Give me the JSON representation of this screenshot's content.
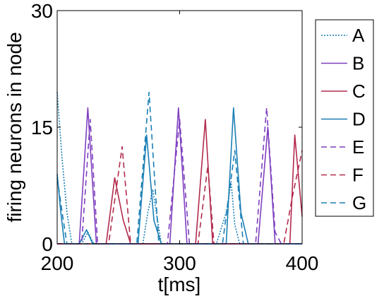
{
  "chart_data": {
    "type": "line",
    "title": "",
    "xlabel": "t[ms]",
    "ylabel": "firing neurons in node",
    "xlim": [
      200,
      400
    ],
    "ylim": [
      0,
      30
    ],
    "xticks": [
      200,
      300,
      400
    ],
    "yticks": [
      0,
      15,
      30
    ],
    "grid": false,
    "legend_position": "outside-right",
    "series": [
      {
        "name": "A",
        "color": "#1a7fb5",
        "dash": "dotted",
        "points": [
          [
            200,
            19.5
          ],
          [
            204,
            11
          ],
          [
            208,
            4
          ],
          [
            212,
            0
          ],
          [
            220,
            0
          ],
          [
            225,
            1.5
          ],
          [
            230,
            0
          ],
          [
            270,
            0
          ],
          [
            274,
            4
          ],
          [
            278,
            7
          ],
          [
            282,
            3
          ],
          [
            285,
            0
          ],
          [
            330,
            0
          ],
          [
            338,
            4
          ],
          [
            342,
            8
          ],
          [
            345,
            2.5
          ],
          [
            349,
            0
          ],
          [
            400,
            0
          ]
        ]
      },
      {
        "name": "B",
        "color": "#7f3fbf",
        "dash": "solid",
        "points": [
          [
            200,
            0
          ],
          [
            218,
            0
          ],
          [
            225,
            17.5
          ],
          [
            232,
            0
          ],
          [
            285,
            0
          ],
          [
            292,
            0
          ],
          [
            299,
            17.5
          ],
          [
            306,
            0
          ],
          [
            358,
            0
          ],
          [
            364,
            0
          ],
          [
            372,
            15
          ],
          [
            378,
            0
          ],
          [
            400,
            0
          ]
        ]
      },
      {
        "name": "C",
        "color": "#b22a4c",
        "dash": "solid",
        "points": [
          [
            200,
            0
          ],
          [
            240,
            0
          ],
          [
            247,
            8.5
          ],
          [
            254,
            3
          ],
          [
            260,
            0
          ],
          [
            313,
            0
          ],
          [
            321,
            16
          ],
          [
            327,
            0
          ],
          [
            390,
            0
          ],
          [
            394,
            14
          ],
          [
            400,
            3.5
          ]
        ]
      },
      {
        "name": "D",
        "color": "#1a7fb5",
        "dash": "solid",
        "points": [
          [
            200,
            9
          ],
          [
            203,
            4
          ],
          [
            206,
            0
          ],
          [
            218,
            0
          ],
          [
            224,
            1.8
          ],
          [
            229,
            0
          ],
          [
            266,
            0
          ],
          [
            273,
            14
          ],
          [
            279,
            3
          ],
          [
            285,
            0
          ],
          [
            338,
            0
          ],
          [
            344,
            17.5
          ],
          [
            350,
            4
          ],
          [
            356,
            0
          ],
          [
            396,
            0
          ],
          [
            400,
            0
          ]
        ]
      },
      {
        "name": "E",
        "color": "#7f3fbf",
        "dash": "dashed",
        "points": [
          [
            200,
            0
          ],
          [
            220,
            0
          ],
          [
            227,
            16
          ],
          [
            233,
            0
          ],
          [
            290,
            0
          ],
          [
            300,
            16
          ],
          [
            308,
            0
          ],
          [
            362,
            0
          ],
          [
            371,
            17.5
          ],
          [
            378,
            1.5
          ],
          [
            383,
            0
          ],
          [
            400,
            0
          ]
        ]
      },
      {
        "name": "F",
        "color": "#b22a4c",
        "dash": "dashed",
        "points": [
          [
            200,
            0
          ],
          [
            242,
            0
          ],
          [
            253,
            12.5
          ],
          [
            260,
            0
          ],
          [
            315,
            0
          ],
          [
            323,
            10
          ],
          [
            328,
            0
          ],
          [
            385,
            0
          ],
          [
            392,
            6
          ],
          [
            400,
            12
          ]
        ]
      },
      {
        "name": "G",
        "color": "#1a7fb5",
        "dash": "dashed",
        "points": [
          [
            200,
            8.5
          ],
          [
            205,
            3
          ],
          [
            208,
            0
          ],
          [
            265,
            0
          ],
          [
            275,
            19.5
          ],
          [
            283,
            0
          ],
          [
            335,
            0
          ],
          [
            345,
            12
          ],
          [
            352,
            0
          ],
          [
            400,
            0
          ]
        ]
      }
    ]
  }
}
